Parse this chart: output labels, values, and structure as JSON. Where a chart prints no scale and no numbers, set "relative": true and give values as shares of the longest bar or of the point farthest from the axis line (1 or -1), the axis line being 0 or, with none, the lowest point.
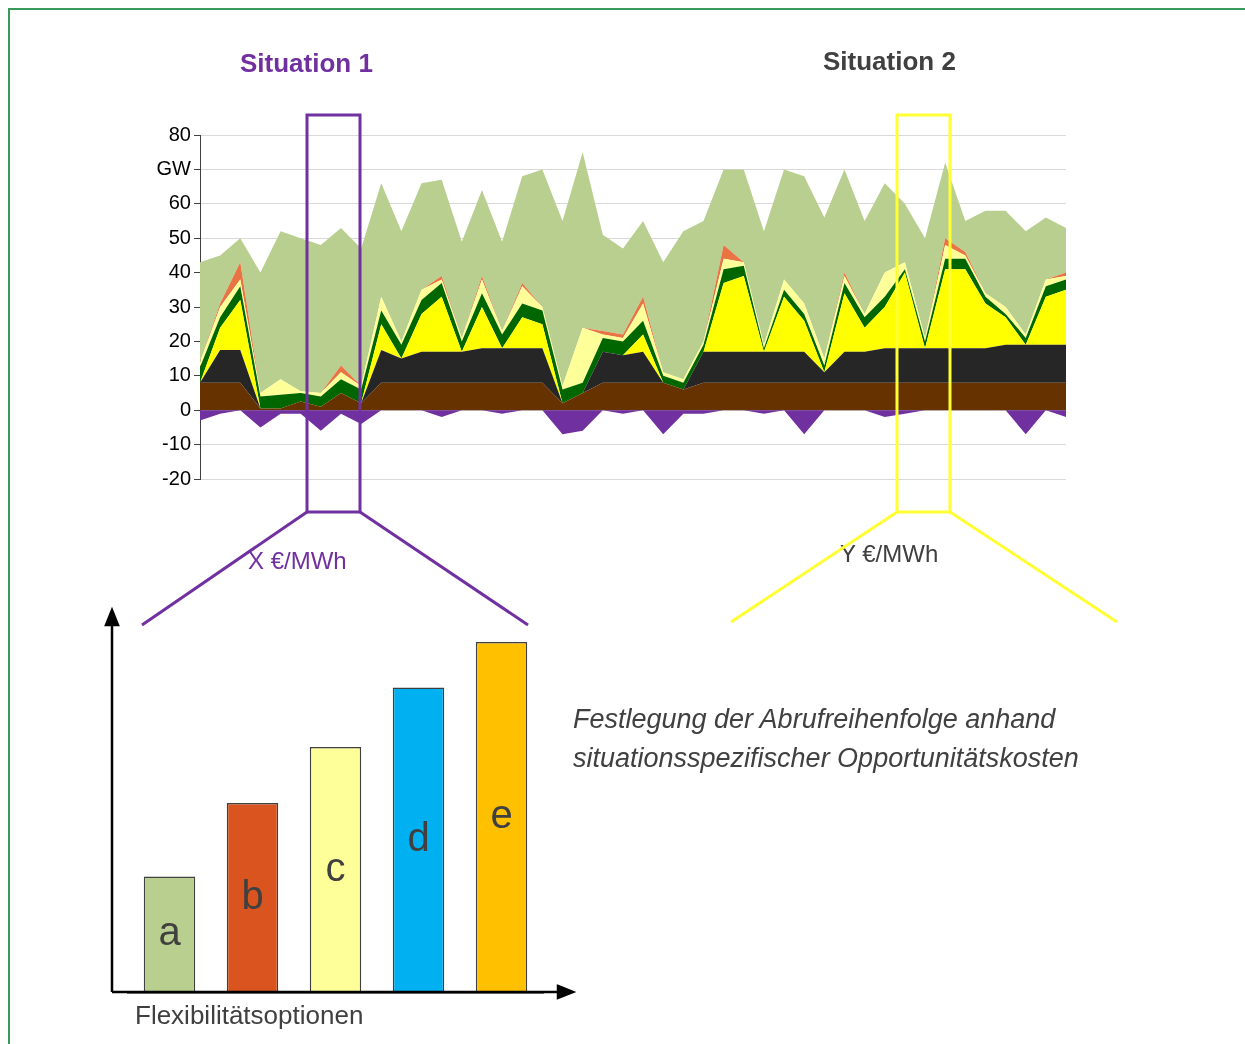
{
  "chart_data": [
    {
      "type": "area",
      "stacked": true,
      "grid": "y",
      "tick_labels": "y",
      "categories": [
        null,
        null,
        null,
        null,
        null,
        null,
        null,
        null,
        null,
        null,
        null,
        null,
        null,
        null,
        null,
        null,
        null,
        null,
        null,
        null,
        null,
        null,
        null,
        null,
        null,
        null,
        null,
        null,
        null,
        null,
        null,
        null,
        null,
        null,
        null,
        null,
        null,
        null,
        null,
        null,
        null,
        null,
        null,
        null
      ],
      "ylim": [
        -20,
        80
      ],
      "yticks": [
        -20,
        -10,
        0,
        10,
        20,
        30,
        40,
        50,
        {
          "value": 70,
          "label": "GW"
        },
        60,
        80
      ],
      "series": [
        {
          "color": "#663300",
          "values": [
            8,
            8,
            8,
            0.5,
            0.5,
            2.5,
            1,
            5,
            2,
            8,
            8,
            8,
            8,
            8,
            8,
            8,
            8,
            8,
            2,
            5,
            8,
            8,
            8,
            8,
            6,
            8,
            8,
            8,
            8,
            8,
            8,
            8,
            8,
            8,
            8,
            8,
            8,
            8,
            8,
            8,
            8,
            8,
            8,
            8
          ]
        },
        {
          "color": "#262626",
          "values": [
            0,
            9.5,
            9.5,
            0,
            0,
            0,
            0,
            0,
            0,
            9.5,
            7,
            9,
            9,
            9,
            10,
            10,
            10,
            10,
            0,
            0,
            9,
            8,
            9,
            0,
            0,
            9,
            9,
            9,
            9,
            9,
            9,
            3,
            9,
            9,
            10,
            10,
            10,
            10,
            10,
            10,
            11,
            11,
            11,
            11
          ]
        },
        {
          "color": "#ffff00",
          "values": [
            0,
            6.5,
            14.5,
            0,
            0,
            0,
            0,
            0,
            0,
            7.5,
            0,
            11,
            16,
            0,
            12,
            0,
            9,
            7,
            0,
            0,
            0,
            0,
            5,
            0,
            0,
            0,
            20,
            22,
            0,
            16,
            9,
            0,
            17,
            7,
            12,
            22,
            0,
            23,
            23,
            13,
            8,
            0,
            14,
            16
          ]
        },
        {
          "color": "#006600",
          "values": [
            4.5,
            3,
            4,
            3.5,
            4,
            2.5,
            3,
            4,
            4,
            4,
            4,
            4,
            4,
            3,
            4,
            4,
            4,
            4,
            4,
            3,
            4,
            4,
            4,
            2,
            2,
            2,
            4,
            3,
            1,
            2,
            2,
            2,
            3,
            3,
            3,
            1,
            2,
            3,
            3,
            2,
            1,
            2,
            3,
            3
          ]
        },
        {
          "color": "#ffff99",
          "values": [
            1.5,
            3,
            2,
            1,
            4.5,
            0.5,
            1,
            2,
            1,
            4,
            1,
            3,
            1,
            1,
            4,
            1,
            5,
            1,
            1,
            16,
            1,
            1,
            5,
            1,
            1,
            1,
            3,
            1,
            1,
            3,
            3,
            2,
            2,
            1,
            7,
            2,
            1,
            4,
            1,
            1,
            2,
            1,
            2,
            1
          ]
        },
        {
          "color": "#e97443",
          "values": [
            0,
            1,
            5,
            0,
            0,
            0,
            0,
            2,
            0,
            0,
            0,
            0,
            1,
            0,
            1,
            0,
            1,
            0,
            0,
            0,
            1,
            1,
            2,
            0,
            0,
            0,
            4,
            0,
            0,
            0,
            0,
            0,
            1,
            0,
            0,
            0,
            0,
            2,
            1,
            0,
            0,
            0,
            0,
            1
          ]
        },
        {
          "color": "#b9cf8f",
          "values": [
            29,
            14,
            7,
            35,
            43,
            44.5,
            43,
            40,
            40,
            33,
            32,
            31,
            28,
            28,
            25,
            26,
            31,
            40,
            48,
            51,
            28,
            25,
            22,
            32,
            43,
            35,
            22,
            27,
            33,
            32,
            37,
            41,
            30,
            27,
            26,
            17,
            29,
            22,
            9,
            24,
            28,
            30,
            18,
            13
          ]
        }
      ],
      "annotations": [
        "Situation 1",
        "Situation 2",
        "X €/MWh",
        "Y €/MWh"
      ]
    },
    {
      "type": "area",
      "tick_labels": false,
      "categories": [
        null,
        null,
        null,
        null,
        null,
        null,
        null,
        null,
        null,
        null,
        null,
        null,
        null,
        null,
        null,
        null,
        null,
        null,
        null,
        null,
        null,
        null,
        null,
        null,
        null,
        null,
        null,
        null,
        null,
        null,
        null,
        null,
        null,
        null,
        null,
        null,
        null,
        null,
        null,
        null,
        null,
        null,
        null,
        null
      ],
      "ylim": [
        -20,
        80
      ],
      "series": [
        {
          "color": "#7030a0",
          "values": [
            -3,
            -1,
            0,
            -5,
            -1,
            -1,
            -6,
            -1,
            -4,
            0,
            0,
            0,
            -2,
            0,
            0,
            -1,
            0,
            0,
            -7,
            -6,
            0,
            -1,
            0,
            -7,
            -1,
            -1,
            0,
            0,
            -1,
            0,
            -7,
            0,
            0,
            0,
            -2,
            -1,
            0,
            0,
            0,
            0,
            0,
            -7,
            0,
            -2
          ]
        }
      ]
    },
    {
      "type": "bar",
      "relative": true,
      "categories": [
        "a",
        "b",
        "c",
        "d",
        "e"
      ],
      "values": [
        0.33,
        0.54,
        0.7,
        0.87,
        1
      ],
      "colors": [
        "#b9cf8f",
        "#d9541e",
        "#ffff99",
        "#00b0f0",
        "#ffc000"
      ],
      "xlabel": "Flexibilitätsoptionen",
      "annotations": [
        "Festlegung der Abrufreihenfolge anhand situationsspezifischer Opportunitätskosten"
      ]
    }
  ]
}
